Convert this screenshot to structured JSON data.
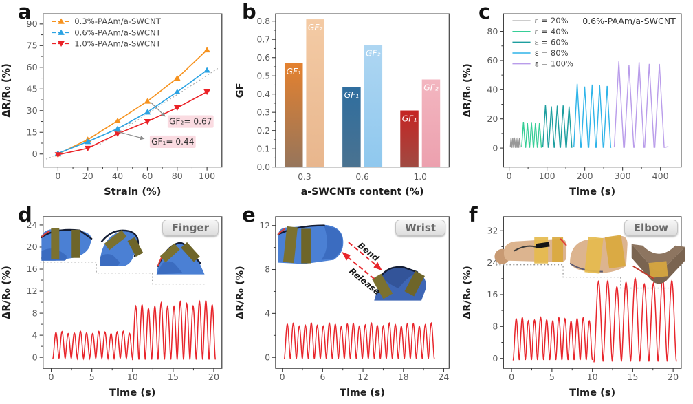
{
  "panels": {
    "a": {
      "letter": "a"
    },
    "b": {
      "letter": "b"
    },
    "c": {
      "letter": "c"
    },
    "d": {
      "letter": "d",
      "badge": "Finger"
    },
    "e": {
      "letter": "e",
      "badge": "Wrist",
      "arrow_labels": {
        "bend": "Bend",
        "release": "Release"
      }
    },
    "f": {
      "letter": "f",
      "badge": "Elbow"
    }
  },
  "colors": {
    "red_curve": "#E8252B",
    "frame": "#3d3d3d",
    "annotation_box": "#FADBE1",
    "fit_line": "#a8a8a8"
  },
  "chart_data": [
    {
      "panel": "a",
      "type": "line",
      "xlabel": "Strain (%)",
      "ylabel": "ΔR/R₀ (%)",
      "xlim": [
        -10,
        110
      ],
      "ylim": [
        -9,
        97
      ],
      "xticks": [
        0,
        20,
        40,
        60,
        80,
        100
      ],
      "yticks": [
        0,
        15,
        30,
        45,
        60,
        75,
        90
      ],
      "x": [
        0,
        20,
        40,
        60,
        80,
        100
      ],
      "series": [
        {
          "name": "0.3%-PAAm/a-SWCNT",
          "color": "#F6921E",
          "marker": "triangle-up",
          "values": [
            0,
            10,
            23,
            36.5,
            52.5,
            72
          ]
        },
        {
          "name": "0.6%-PAAm/a-SWCNT",
          "color": "#2BA3E3",
          "marker": "triangle-up",
          "values": [
            0.5,
            8.5,
            17.5,
            29,
            43,
            58
          ]
        },
        {
          "name": "1.0%-PAAm/a-SWCNT",
          "color": "#EB2227",
          "marker": "triangle-down",
          "values": [
            -0.5,
            4,
            14,
            22.5,
            32,
            43
          ]
        }
      ],
      "fit_lines": [
        {
          "x1": -8,
          "y1": -3.5,
          "x2": 50,
          "y2": 22
        },
        {
          "x1": 28,
          "y1": 6.6,
          "x2": 108,
          "y2": 59.7
        }
      ],
      "annotations": [
        {
          "text": "GF₁= 0.44",
          "box_cx": 77,
          "box_cy": 8.5,
          "from_x": 38,
          "from_y": 16,
          "to_x": 58,
          "to_y": 10.5
        },
        {
          "text": "GF₂= 0.67",
          "box_cx": 89,
          "box_cy": 22.5,
          "from_x": 62,
          "from_y": 36,
          "to_x": 72,
          "to_y": 26
        }
      ],
      "legend_position": "top-left",
      "grid": false
    },
    {
      "panel": "b",
      "type": "bar",
      "xlabel": "a-SWCNTs content (%)",
      "ylabel": "GF",
      "ylim": [
        0,
        0.84
      ],
      "yticks": [
        0,
        0.1,
        0.2,
        0.3,
        0.4,
        0.5,
        0.6,
        0.7,
        0.8
      ],
      "ytick_labels": [
        "0.0",
        "0.1",
        "0.2",
        "0.3",
        "0.4",
        "0.5",
        "0.6",
        "0.7",
        "0.8"
      ],
      "categories": [
        "0.3",
        "0.6",
        "1.0"
      ],
      "series": [
        {
          "name": "GF₁",
          "values": [
            0.57,
            0.44,
            0.31
          ],
          "colors_top": [
            "#E4812F",
            "#2F6E9F",
            "#C52524"
          ],
          "colors_bottom": [
            "#96755B",
            "#4A7290",
            "#A04A42"
          ]
        },
        {
          "name": "GF₂",
          "values": [
            0.81,
            0.67,
            0.48
          ],
          "colors_top": [
            "#F4CBA5",
            "#AED6F2",
            "#F3B6C0"
          ],
          "colors_bottom": [
            "#E8B68D",
            "#8FC8EE",
            "#ECA0AE"
          ]
        }
      ],
      "grid": false
    },
    {
      "panel": "c",
      "type": "wave-triangle",
      "title": "0.6%-PAAm/a-SWCNT",
      "xlabel": "Time (s)",
      "ylabel": "ΔR/R₀ (%)",
      "xlim": [
        -15,
        455
      ],
      "ylim": [
        -13,
        92
      ],
      "xticks": [
        0,
        100,
        200,
        300,
        400
      ],
      "yticks": [
        0,
        20,
        40,
        60,
        80
      ],
      "series": [
        {
          "name": "ε = 20%",
          "color": "#989898",
          "start": 3,
          "end": 30,
          "cycles": 6,
          "amplitude": 7
        },
        {
          "name": "ε = 40%",
          "color": "#36CE97",
          "start": 33,
          "end": 86,
          "cycles": 5,
          "amplitude": 17.5
        },
        {
          "name": "ε = 60%",
          "color": "#1D9E9F",
          "start": 89,
          "end": 167,
          "cycles": 5,
          "amplitude": 29
        },
        {
          "name": "ε = 80%",
          "color": "#2FB4E9",
          "start": 171,
          "end": 270,
          "cycles": 5,
          "amplitude": 43
        },
        {
          "name": "ε = 100%",
          "color": "#B99CEA",
          "start": 278,
          "end": 412,
          "cycles": 5,
          "amplitude": 58,
          "tail_end": 421
        }
      ],
      "legend_position": "top-left",
      "grid": false
    },
    {
      "panel": "d",
      "type": "wave-smooth",
      "xlabel": "Time (s)",
      "ylabel": "ΔR/R₀ (%)",
      "xlim": [
        -1,
        21
      ],
      "ylim": [
        -2,
        25.5
      ],
      "xticks": [
        0,
        5,
        10,
        15,
        20
      ],
      "yticks": [
        0,
        4,
        8,
        12,
        16,
        20,
        24
      ],
      "color": "#E8252B",
      "segments": [
        {
          "start": 0.2,
          "end": 10,
          "cycles": 13,
          "amplitude": 4.7,
          "trend": 0.02
        },
        {
          "start": 10,
          "end": 20.2,
          "cycles": 13,
          "amplitude": 10,
          "trend": 0.1
        }
      ],
      "grid": false
    },
    {
      "panel": "e",
      "type": "wave-smooth",
      "xlabel": "Time (s)",
      "ylabel": "ΔR/R₀ (%)",
      "xlim": [
        -1,
        24.8
      ],
      "ylim": [
        -1,
        12.8
      ],
      "xticks": [
        0,
        6,
        12,
        18,
        24
      ],
      "yticks": [
        0,
        4,
        8,
        12
      ],
      "color": "#E8252B",
      "segments": [
        {
          "start": 0.3,
          "end": 22.6,
          "cycles": 25,
          "amplitude": 3.1,
          "trend": 0.0
        }
      ],
      "grid": false
    },
    {
      "panel": "f",
      "type": "wave-smooth",
      "xlabel": "Time (s)",
      "ylabel": "ΔR/R₀ (%)",
      "xlim": [
        -1,
        21
      ],
      "ylim": [
        -2.5,
        35.5
      ],
      "xticks": [
        0,
        5,
        10,
        15,
        20
      ],
      "yticks": [
        0,
        8,
        16,
        24,
        32
      ],
      "color": "#E8252B",
      "segments": [
        {
          "start": 0.2,
          "end": 10,
          "cycles": 13,
          "amplitude": 10.2,
          "trend": 0.0
        },
        {
          "start": 10.2,
          "end": 20.4,
          "cycles": 9,
          "amplitude": 20,
          "trend": 0.05
        }
      ],
      "grid": false
    }
  ]
}
